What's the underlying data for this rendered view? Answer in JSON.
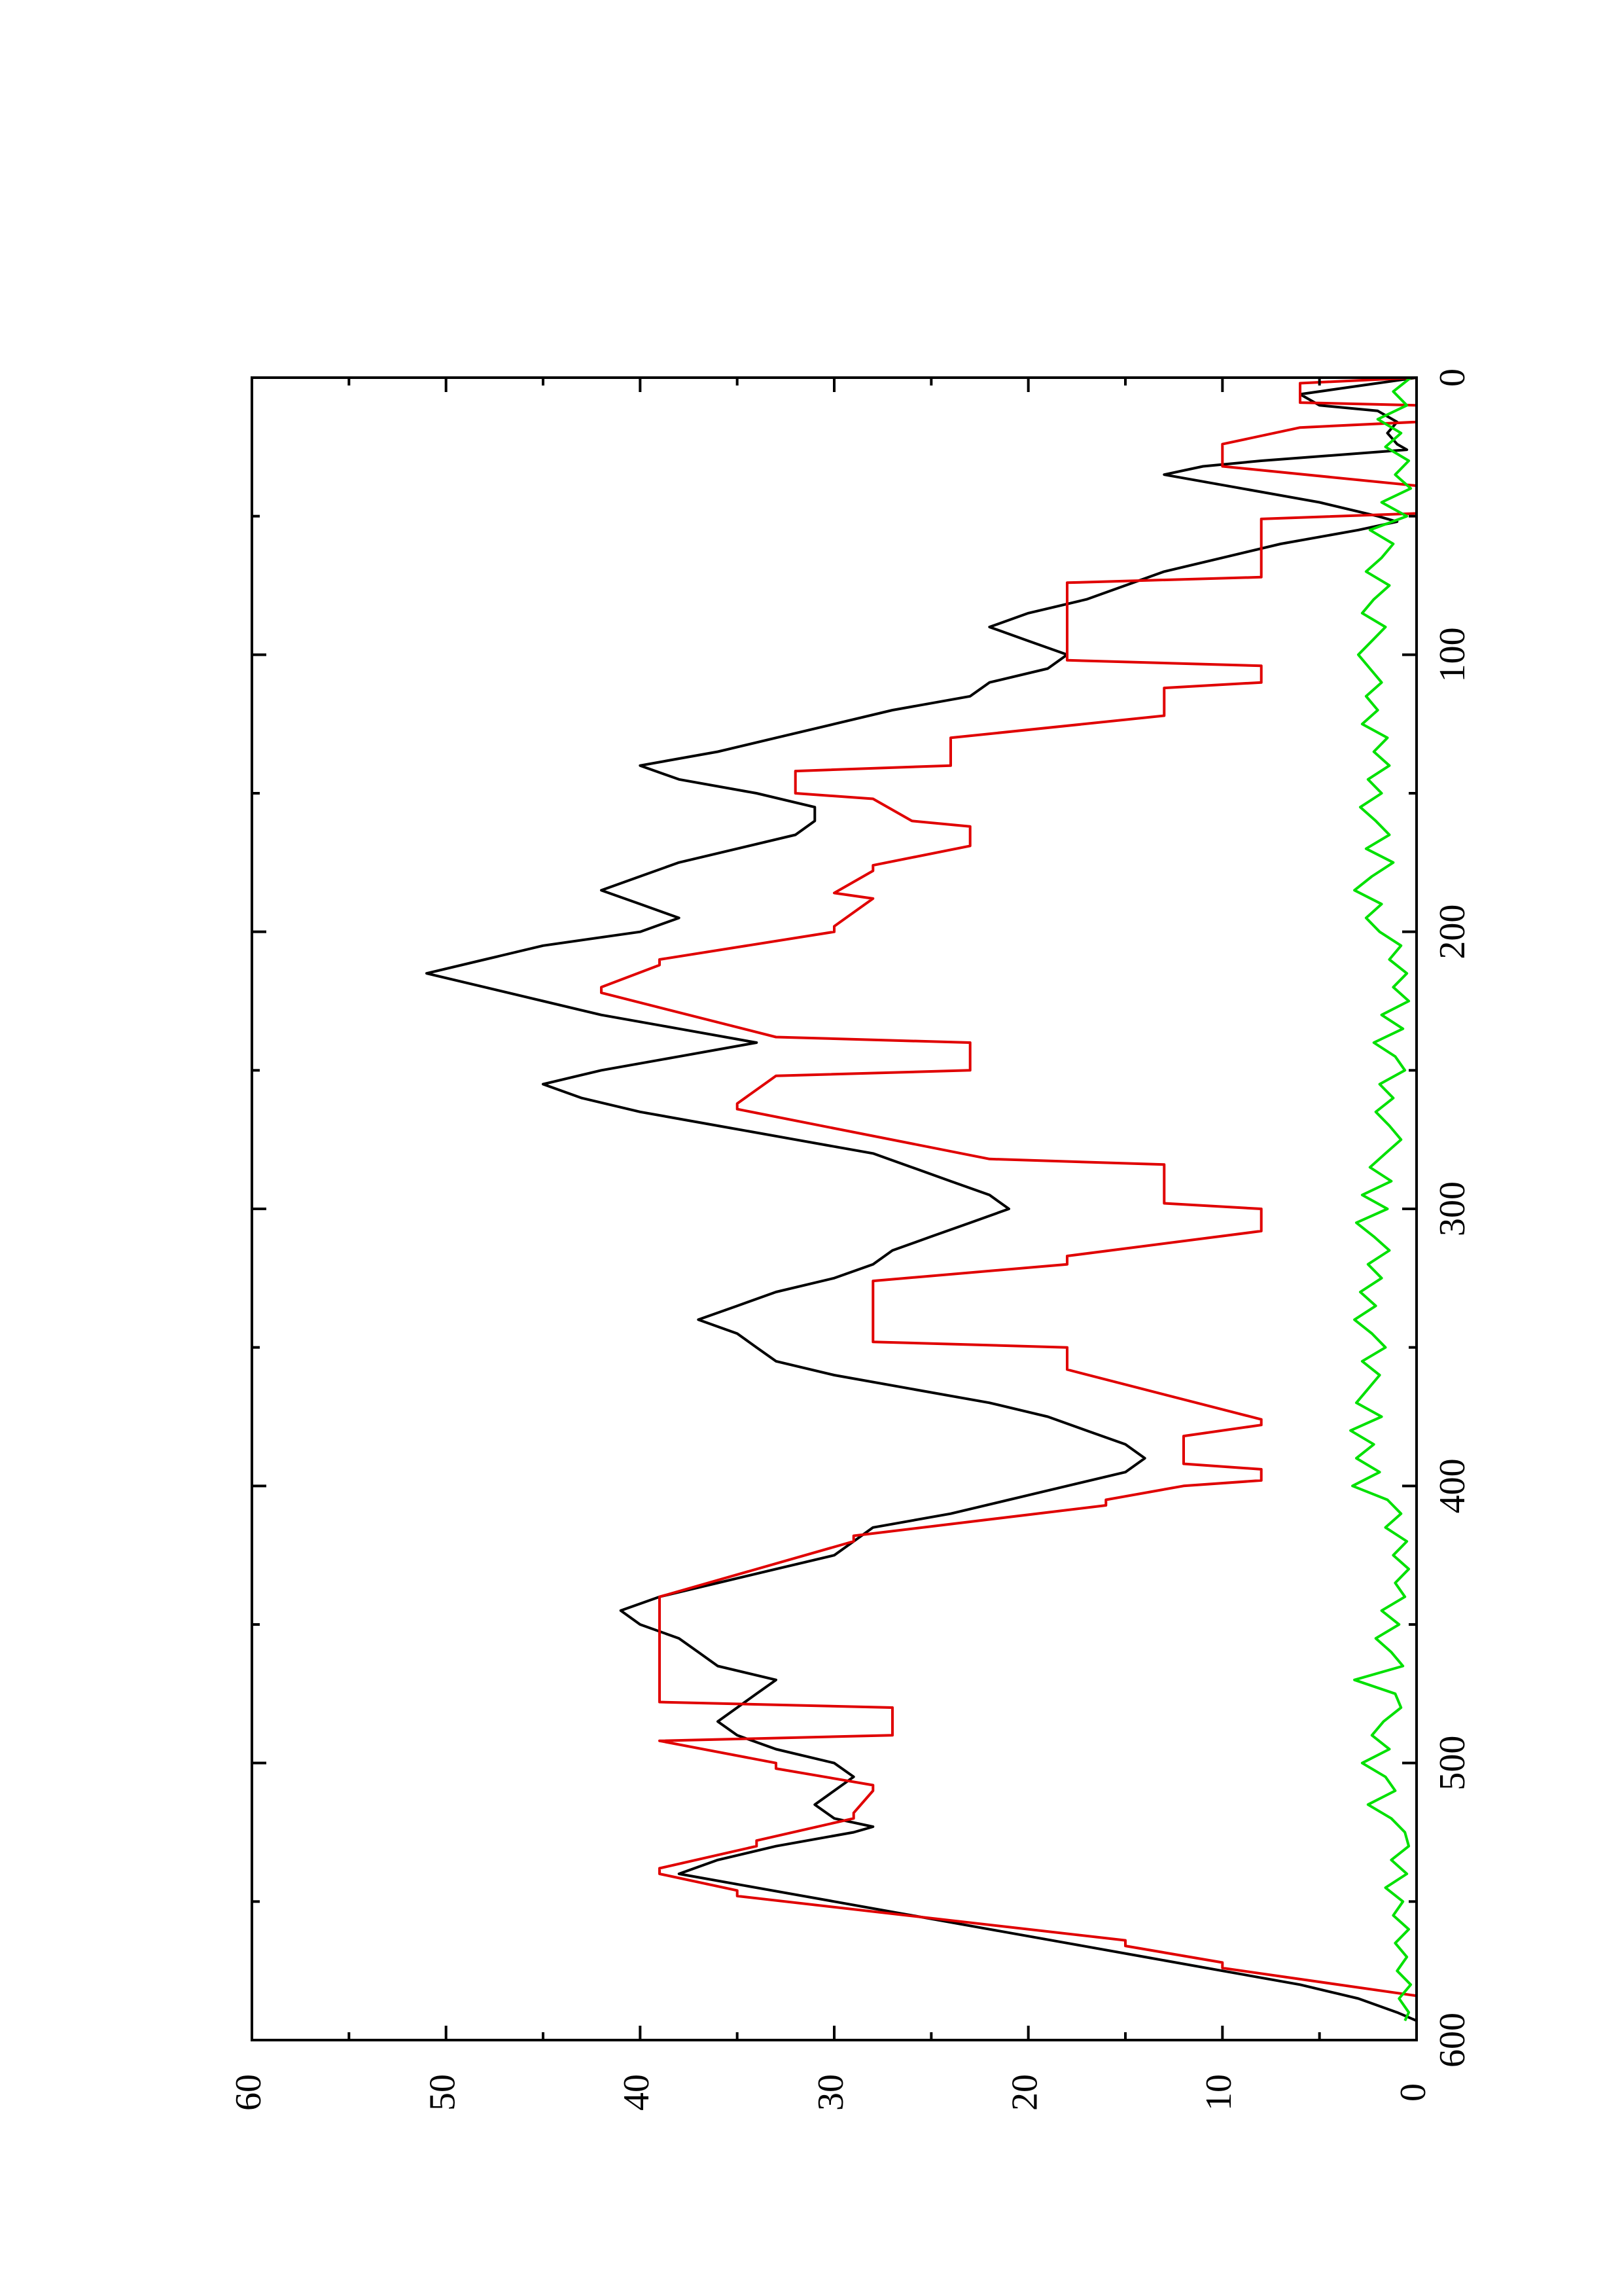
{
  "chart_data": {
    "type": "line",
    "orientation": "rotated-90-ccw",
    "title": "",
    "xlabel": "",
    "ylabel": "",
    "xlim": [
      0,
      600
    ],
    "ylim": [
      0,
      60
    ],
    "x_ticks": [
      0,
      100,
      200,
      300,
      400,
      500,
      600
    ],
    "y_ticks": [
      0,
      10,
      20,
      30,
      40,
      50,
      60
    ],
    "grid": false,
    "legend": "none",
    "series": [
      {
        "color": "#000000",
        "x": [
          0,
          4,
          6,
          10,
          12,
          16,
          20,
          24,
          26,
          30,
          32,
          35,
          40,
          45,
          50,
          52,
          55,
          60,
          65,
          70,
          75,
          80,
          85,
          90,
          95,
          100,
          105,
          110,
          115,
          120,
          125,
          130,
          135,
          140,
          145,
          150,
          155,
          160,
          165,
          170,
          175,
          180,
          185,
          190,
          195,
          200,
          205,
          210,
          215,
          220,
          225,
          230,
          235,
          240,
          245,
          250,
          255,
          260,
          265,
          270,
          275,
          280,
          285,
          290,
          295,
          300,
          305,
          310,
          315,
          320,
          325,
          330,
          335,
          340,
          345,
          350,
          355,
          360,
          365,
          370,
          375,
          380,
          385,
          390,
          395,
          400,
          405,
          410,
          415,
          420,
          425,
          430,
          435,
          440,
          445,
          450,
          455,
          460,
          465,
          470,
          475,
          480,
          485,
          490,
          495,
          500,
          505,
          510,
          515,
          520,
          523,
          525,
          530,
          535,
          540,
          545,
          550,
          555,
          560,
          565,
          570,
          575,
          580,
          585,
          590,
          593
        ],
        "y": [
          0,
          4,
          6,
          5,
          2,
          1,
          1.5,
          1,
          0.5,
          8,
          11,
          13,
          9,
          5,
          2,
          1,
          3,
          7,
          10,
          13,
          15,
          17,
          20,
          22,
          20,
          18,
          19,
          22,
          23,
          27,
          30,
          33,
          36,
          40,
          38,
          34,
          31,
          31,
          32,
          35,
          38,
          40,
          42,
          40,
          38,
          40,
          45,
          48,
          51,
          48,
          45,
          42,
          38,
          34,
          38,
          42,
          45,
          43,
          40,
          36,
          32,
          28,
          26,
          24,
          22,
          21,
          23,
          25,
          27,
          28,
          30,
          33,
          35,
          37,
          35,
          34,
          33,
          30,
          26,
          22,
          19,
          17,
          15,
          14,
          15,
          18,
          21,
          24,
          28,
          29,
          30,
          33,
          36,
          39,
          41,
          40,
          38,
          37,
          36,
          33,
          34,
          35,
          36,
          35,
          33,
          30,
          29,
          30,
          31,
          30,
          28,
          29,
          33,
          36,
          38,
          34,
          30,
          26,
          22,
          18,
          14,
          10,
          6,
          3,
          1,
          0
        ]
      },
      {
        "color": "#e00000",
        "x": [
          0,
          2,
          5,
          7,
          9,
          10,
          16,
          18,
          24,
          30,
          32,
          39,
          41,
          47,
          49,
          51,
          55,
          58,
          72,
          74,
          80,
          84,
          102,
          104,
          110,
          112,
          120,
          122,
          130,
          132,
          140,
          142,
          150,
          152,
          160,
          162,
          167,
          169,
          176,
          178,
          186,
          188,
          198,
          200,
          210,
          212,
          220,
          222,
          238,
          240,
          250,
          252,
          262,
          264,
          282,
          284,
          298,
          300,
          306,
          308,
          317,
          320,
          326,
          328,
          348,
          350,
          356,
          358,
          376,
          378,
          382,
          384,
          392,
          394,
          398,
          400,
          405,
          407,
          418,
          420,
          440,
          442,
          478,
          480,
          490,
          492,
          500,
          502,
          508,
          510,
          518,
          520,
          528,
          530,
          538,
          540,
          546,
          548,
          564,
          566,
          572,
          574,
          584,
          586,
          593
        ],
        "y": [
          0,
          6,
          6,
          6,
          6,
          0,
          0,
          6,
          10,
          10,
          10,
          0,
          0,
          0,
          0,
          8,
          8,
          8,
          8,
          18,
          18,
          18,
          18,
          8,
          8,
          13,
          13,
          13,
          24,
          24,
          24,
          32,
          32,
          28,
          26,
          23,
          23,
          23,
          28,
          28,
          30,
          28,
          30,
          30,
          39,
          39,
          42,
          42,
          33,
          23,
          23,
          33,
          35,
          35,
          22,
          13,
          13,
          8,
          8,
          8,
          18,
          18,
          28,
          28,
          28,
          18,
          18,
          18,
          8,
          8,
          12,
          12,
          12,
          8,
          8,
          12,
          16,
          16,
          29,
          29,
          39,
          39,
          39,
          27,
          27,
          39,
          33,
          33,
          28,
          28,
          29,
          29,
          34,
          34,
          39,
          39,
          35,
          35,
          15,
          15,
          10,
          10,
          0,
          0,
          0
        ]
      },
      {
        "color": "#00e000",
        "x": [
          0,
          5,
          10,
          15,
          20,
          25,
          30,
          35,
          40,
          45,
          50,
          55,
          60,
          65,
          70,
          75,
          80,
          85,
          90,
          95,
          100,
          105,
          110,
          115,
          120,
          125,
          130,
          135,
          140,
          145,
          150,
          155,
          160,
          165,
          170,
          175,
          180,
          185,
          190,
          195,
          200,
          205,
          210,
          215,
          220,
          225,
          230,
          235,
          240,
          245,
          250,
          255,
          260,
          265,
          270,
          275,
          280,
          285,
          290,
          295,
          300,
          305,
          310,
          315,
          320,
          325,
          330,
          335,
          340,
          345,
          350,
          355,
          360,
          365,
          370,
          375,
          380,
          385,
          390,
          395,
          400,
          405,
          410,
          415,
          420,
          425,
          430,
          435,
          440,
          445,
          450,
          455,
          460,
          465,
          470,
          475,
          480,
          485,
          490,
          495,
          500,
          505,
          510,
          515,
          520,
          525,
          530,
          535,
          540,
          545,
          550,
          555,
          560,
          565,
          570,
          575,
          580,
          585,
          590,
          593
        ],
        "y": [
          0.3,
          1.2,
          0.5,
          2,
          0.8,
          1.6,
          0.4,
          1.1,
          0.3,
          1.8,
          0.5,
          2.4,
          1.2,
          1.8,
          2.6,
          1.4,
          2.2,
          2.8,
          1.6,
          2.3,
          3,
          2.4,
          1.8,
          2.6,
          2,
          2.8,
          1.5,
          2.2,
          1.4,
          2.5,
          1.8,
          2.9,
          2.1,
          1.4,
          2.6,
          1.2,
          2.3,
          3.2,
          1.8,
          2.6,
          1.9,
          0.8,
          1.4,
          0.5,
          1.2,
          0.4,
          1.8,
          0.7,
          2.2,
          1.1,
          0.6,
          1.9,
          1.2,
          2.1,
          1.4,
          0.8,
          1.6,
          2.4,
          1.3,
          2.8,
          1.5,
          3.1,
          2.2,
          1.4,
          2.5,
          1.8,
          2.9,
          2.1,
          3.2,
          2.3,
          1.6,
          2.8,
          1.9,
          2.5,
          3.1,
          1.8,
          3.4,
          2.2,
          3.1,
          1.9,
          3.3,
          1.5,
          0.8,
          1.6,
          0.5,
          1.2,
          0.4,
          1.1,
          0.6,
          1.8,
          0.9,
          2.1,
          1.3,
          0.7,
          3.2,
          1.1,
          0.8,
          1.7,
          2.3,
          1.4,
          2.8,
          1.6,
          1.1,
          2.5,
          1.3,
          0.6,
          0.4,
          1.3,
          0.5,
          1.6,
          0.7,
          1.2,
          0.4,
          1.1,
          0.5,
          1,
          0.3,
          0.9,
          0.4,
          0.6
        ]
      }
    ]
  }
}
